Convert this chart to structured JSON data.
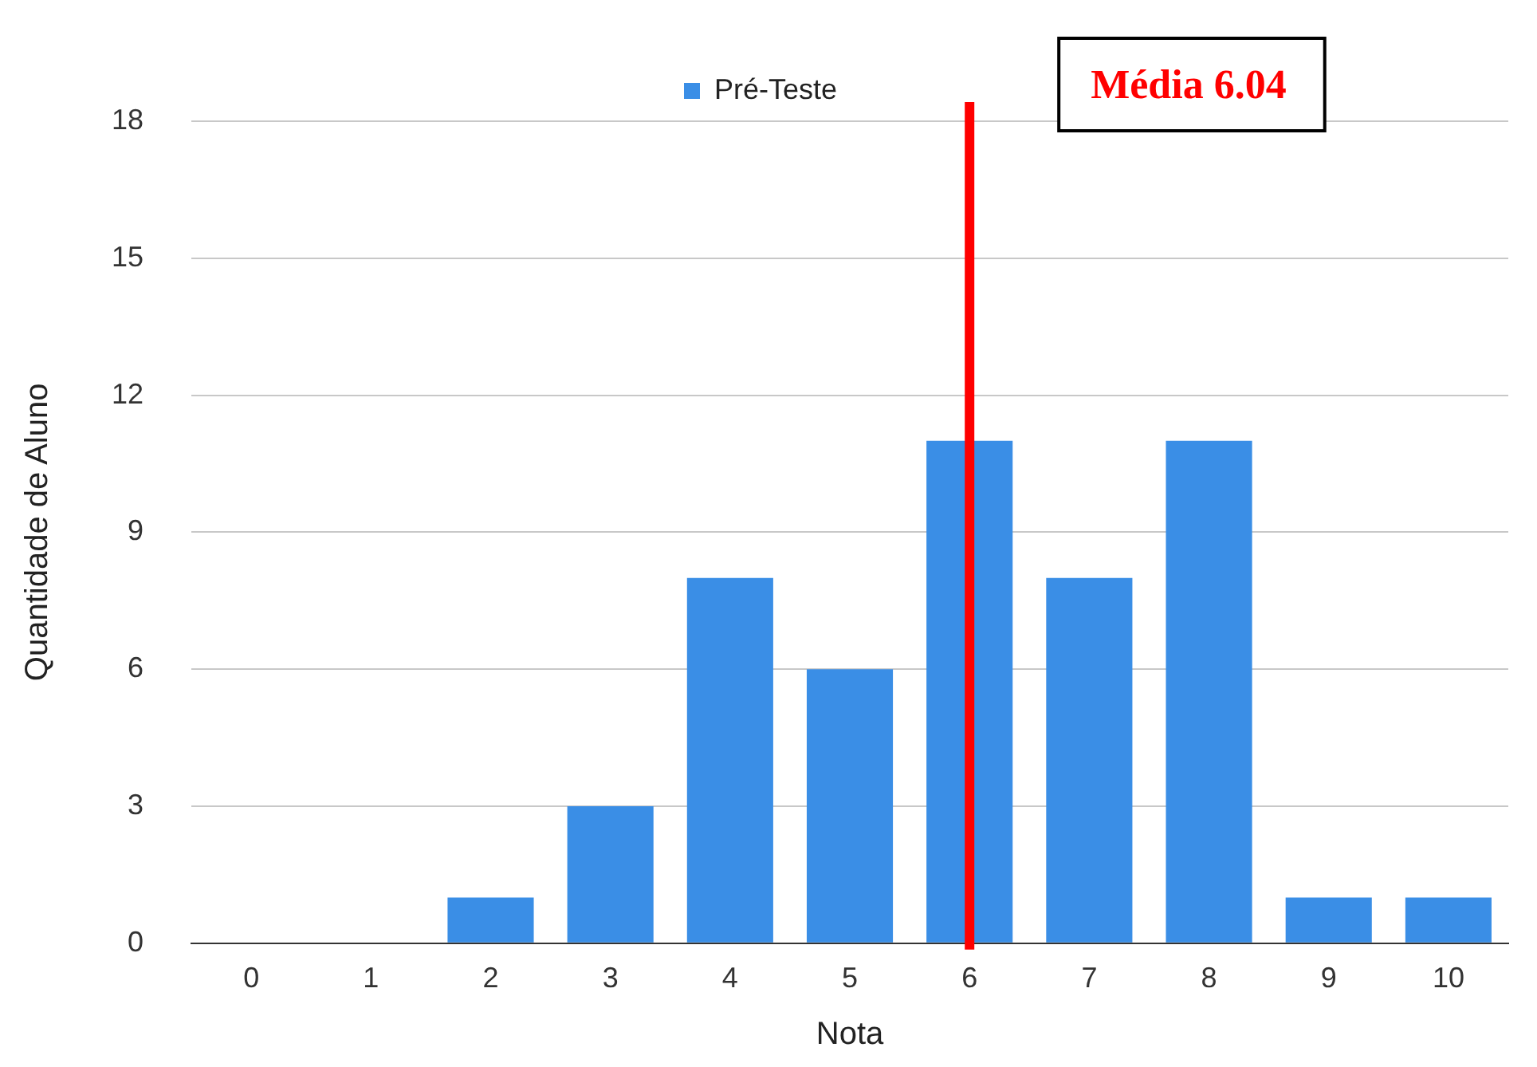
{
  "chart_data": {
    "type": "bar",
    "xlabel": "Nota",
    "ylabel": "Quantidade de Aluno",
    "categories": [
      "0",
      "1",
      "2",
      "3",
      "4",
      "5",
      "6",
      "7",
      "8",
      "9",
      "10"
    ],
    "series": [
      {
        "name": "Pré-Teste",
        "color": "#3a8ee6",
        "values": [
          0,
          0,
          1,
          3,
          8,
          6,
          11,
          8,
          11,
          1,
          1
        ]
      }
    ],
    "ylim": [
      0,
      18
    ],
    "yticks": [
      0,
      3,
      6,
      9,
      12,
      15,
      18
    ],
    "grid": "y",
    "legend": "top",
    "ref_lines": [
      {
        "axis": "x",
        "value": "6",
        "label": "Média 6.04",
        "color": "#ff0000"
      }
    ]
  }
}
